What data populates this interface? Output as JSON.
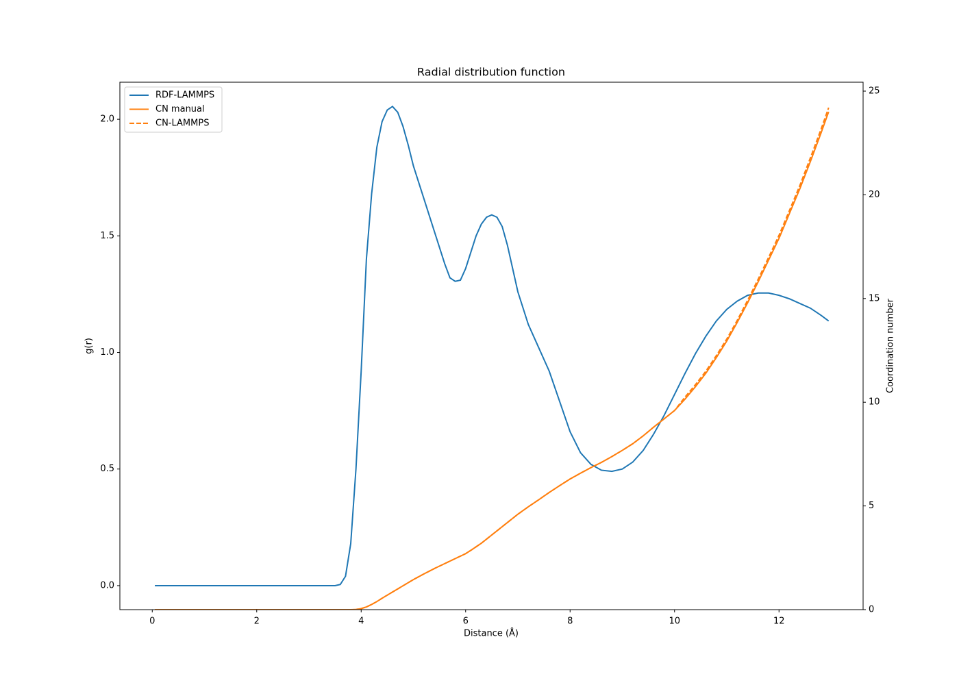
{
  "chart_data": {
    "type": "line",
    "title": "Radial distribution function",
    "xlabel": "Distance (Å)",
    "ylabel": "g(r)",
    "y2label": "Coordination number",
    "legend": "upper left",
    "x": [
      0.05,
      0.5,
      1,
      1.5,
      2,
      2.5,
      3,
      3.5,
      3.6,
      3.7,
      3.8,
      3.9,
      4.0,
      4.1,
      4.2,
      4.3,
      4.4,
      4.5,
      4.6,
      4.7,
      4.8,
      4.9,
      5.0,
      5.2,
      5.4,
      5.6,
      5.7,
      5.8,
      5.9,
      6.0,
      6.1,
      6.2,
      6.3,
      6.4,
      6.5,
      6.6,
      6.7,
      6.8,
      6.9,
      7.0,
      7.2,
      7.4,
      7.6,
      7.8,
      8.0,
      8.2,
      8.4,
      8.6,
      8.8,
      9.0,
      9.2,
      9.4,
      9.6,
      9.8,
      10.0,
      10.2,
      10.4,
      10.6,
      10.8,
      11.0,
      11.2,
      11.4,
      11.6,
      11.8,
      12.0,
      12.2,
      12.4,
      12.6,
      12.8,
      12.95
    ],
    "series": [
      {
        "name": "RDF-LAMMPS",
        "color": "#1f77b4",
        "dash": "solid",
        "axis": "y",
        "values": [
          0,
          0,
          0,
          0,
          0,
          0,
          0,
          0,
          0.005,
          0.04,
          0.18,
          0.5,
          0.92,
          1.4,
          1.68,
          1.88,
          1.99,
          2.04,
          2.055,
          2.03,
          1.97,
          1.89,
          1.8,
          1.66,
          1.52,
          1.38,
          1.32,
          1.305,
          1.31,
          1.36,
          1.43,
          1.5,
          1.55,
          1.58,
          1.59,
          1.58,
          1.54,
          1.46,
          1.36,
          1.26,
          1.12,
          1.02,
          0.92,
          0.79,
          0.66,
          0.57,
          0.52,
          0.495,
          0.49,
          0.5,
          0.53,
          0.58,
          0.65,
          0.73,
          0.82,
          0.91,
          0.995,
          1.07,
          1.135,
          1.185,
          1.22,
          1.245,
          1.255,
          1.255,
          1.245,
          1.23,
          1.21,
          1.19,
          1.16,
          1.135
        ]
      },
      {
        "name": "CN manual",
        "color": "#ff7f0e",
        "dash": "solid",
        "axis": "y2",
        "values": [
          0,
          0,
          0,
          0,
          0,
          0,
          0,
          0,
          0,
          0,
          0,
          0.01,
          0.05,
          0.13,
          0.25,
          0.39,
          0.55,
          0.7,
          0.85,
          1.0,
          1.15,
          1.3,
          1.45,
          1.72,
          1.98,
          2.22,
          2.34,
          2.46,
          2.58,
          2.7,
          2.86,
          3.03,
          3.2,
          3.4,
          3.6,
          3.8,
          4.0,
          4.2,
          4.4,
          4.6,
          4.96,
          5.3,
          5.65,
          5.98,
          6.3,
          6.58,
          6.85,
          7.1,
          7.38,
          7.68,
          8.0,
          8.38,
          8.8,
          9.2,
          9.6,
          10.15,
          10.75,
          11.4,
          12.15,
          12.95,
          13.85,
          14.8,
          15.8,
          16.85,
          17.9,
          19.1,
          20.3,
          21.6,
          22.95,
          24.0
        ]
      },
      {
        "name": "CN-LAMMPS",
        "color": "#ff7f0e",
        "dash": "dashed",
        "axis": "y2",
        "values": [
          0,
          0,
          0,
          0,
          0,
          0,
          0,
          0,
          0,
          0,
          0,
          0.01,
          0.05,
          0.13,
          0.25,
          0.39,
          0.55,
          0.7,
          0.85,
          1.0,
          1.15,
          1.3,
          1.45,
          1.72,
          1.98,
          2.22,
          2.34,
          2.46,
          2.58,
          2.7,
          2.86,
          3.03,
          3.2,
          3.4,
          3.6,
          3.8,
          4.0,
          4.2,
          4.4,
          4.6,
          4.96,
          5.3,
          5.65,
          5.98,
          6.3,
          6.58,
          6.85,
          7.1,
          7.38,
          7.68,
          8.0,
          8.38,
          8.8,
          9.2,
          9.6,
          10.25,
          10.85,
          11.5,
          12.25,
          13.05,
          13.95,
          14.92,
          15.93,
          16.98,
          18.05,
          19.25,
          20.46,
          21.78,
          23.13,
          24.2
        ]
      }
    ],
    "xlim": [
      -0.62,
      13.61
    ],
    "xticks": [
      0,
      2,
      4,
      6,
      8,
      10,
      12
    ],
    "ylim": [
      -0.103,
      2.159
    ],
    "yticks": [
      {
        "value": 0,
        "label": "0.0"
      },
      0.5,
      {
        "value": 1,
        "label": "1.0"
      },
      1.5,
      {
        "value": 2,
        "label": "2.0"
      }
    ],
    "y2lim": [
      0,
      25.43
    ],
    "y2ticks": [
      0,
      5,
      10,
      15,
      20,
      25
    ]
  }
}
